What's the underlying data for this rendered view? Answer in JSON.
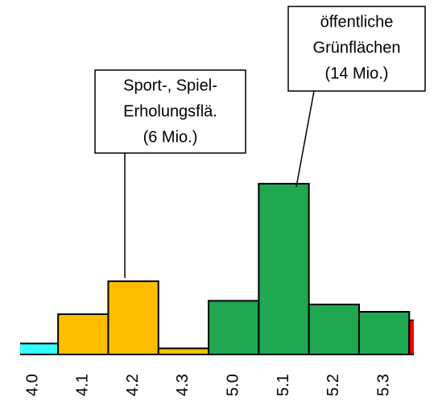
{
  "chart_data": {
    "type": "bar",
    "categories": [
      "4.0",
      "4.1",
      "4.2",
      "4.3",
      "5.0",
      "5.1",
      "5.2",
      "5.3",
      null
    ],
    "values": [
      0.9,
      3.3,
      6,
      0.5,
      4.4,
      14,
      4.1,
      3.5,
      2.8
    ],
    "colors": [
      "#33ffff",
      "#ffbf00",
      "#ffbf00",
      "#ffbf00",
      "#1fa84f",
      "#1fa84f",
      "#1fa84f",
      "#1fa84f",
      "#ff0000"
    ],
    "annotations": [
      {
        "lines": [
          "Sport-, Spiel-",
          "Erholungsflä.",
          "(6 Mio.)"
        ]
      },
      {
        "lines": [
          "öffentliche",
          "Grünflächen",
          "(14 Mio.)"
        ]
      }
    ]
  }
}
